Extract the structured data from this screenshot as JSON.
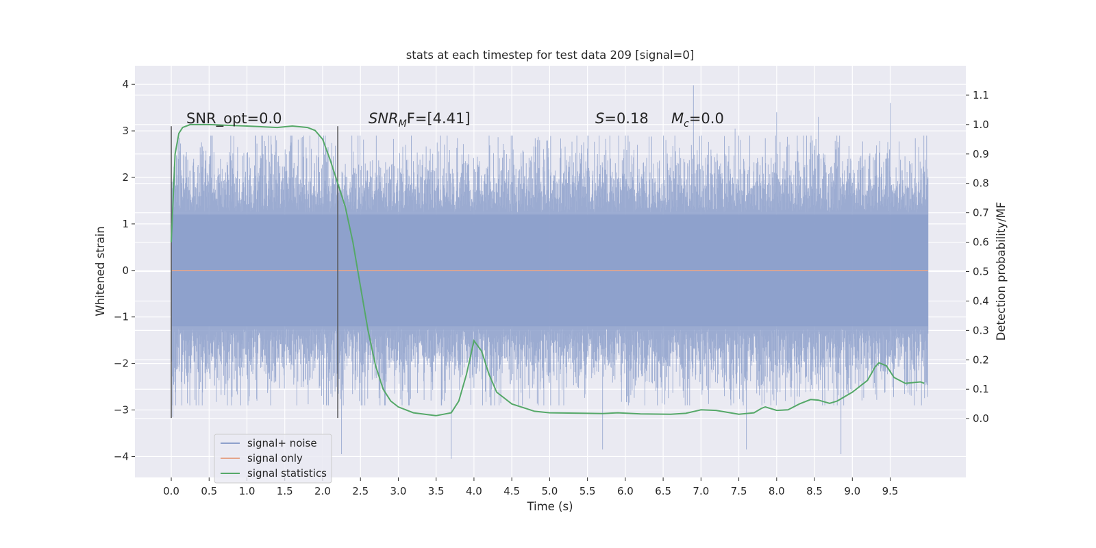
{
  "chart_data": {
    "type": "line",
    "title": "stats at each timestep for test data 209 [signal=0]",
    "xlabel": "Time (s)",
    "ylabel": "Whitened strain",
    "ylabel_right": "Detection probability/MF",
    "xlim": [
      -0.48,
      10.5
    ],
    "ylim": [
      -4.45,
      4.4
    ],
    "ylim_right": [
      -0.2,
      1.2
    ],
    "x_ticks": [
      0.0,
      0.5,
      1.0,
      1.5,
      2.0,
      2.5,
      3.0,
      3.5,
      4.0,
      4.5,
      5.0,
      5.5,
      6.0,
      6.5,
      7.0,
      7.5,
      8.0,
      8.5,
      9.0,
      9.5
    ],
    "x_tick_labels": [
      "0.0",
      "0.5",
      "1.0",
      "1.5",
      "2.0",
      "2.5",
      "3.0",
      "3.5",
      "4.0",
      "4.5",
      "5.0",
      "5.5",
      "6.0",
      "6.5",
      "7.0",
      "7.5",
      "8.0",
      "8.5",
      "9.0",
      "9.5"
    ],
    "y_ticks": [
      -4,
      -3,
      -2,
      -1,
      0,
      1,
      2,
      3,
      4
    ],
    "y_tick_labels": [
      "−4",
      "−3",
      "−2",
      "−1",
      "0",
      "1",
      "2",
      "3",
      "4"
    ],
    "y_right_ticks": [
      0.0,
      0.1,
      0.2,
      0.3,
      0.4,
      0.5,
      0.6,
      0.7,
      0.8,
      0.9,
      1.0,
      1.1
    ],
    "y_right_tick_labels": [
      "0.0",
      "0.1",
      "0.2",
      "0.3",
      "0.4",
      "0.5",
      "0.6",
      "0.7",
      "0.8",
      "0.9",
      "1.0",
      "1.1"
    ],
    "grid": true,
    "legend_position": "lower-left",
    "series": [
      {
        "name": "signal+ noise",
        "axis": "left",
        "color": "#8da0cb",
        "x_range": [
          0.0,
          10.0
        ],
        "typical_range": [
          -2.0,
          2.0
        ],
        "peaks_high": [
          [
            0.05,
            2.3
          ],
          [
            2.2,
            3.05
          ],
          [
            6.9,
            3.98
          ],
          [
            7.45,
            3.05
          ],
          [
            8.0,
            3.4
          ],
          [
            8.55,
            3.3
          ],
          [
            9.5,
            3.6
          ]
        ],
        "peaks_low": [
          [
            0.02,
            -3.15
          ],
          [
            2.25,
            -3.95
          ],
          [
            3.7,
            -4.05
          ],
          [
            5.7,
            -3.85
          ],
          [
            7.6,
            -3.85
          ],
          [
            8.85,
            -3.95
          ]
        ]
      },
      {
        "name": "signal only",
        "axis": "left",
        "color": "#e5a58a",
        "x": [
          0.0,
          10.0
        ],
        "y": [
          0.0,
          0.0
        ]
      },
      {
        "name": "signal statistics",
        "axis": "right",
        "color": "#55a868",
        "x": [
          0.0,
          0.05,
          0.1,
          0.15,
          0.25,
          0.5,
          1.0,
          1.4,
          1.6,
          1.8,
          1.9,
          2.0,
          2.1,
          2.2,
          2.3,
          2.4,
          2.5,
          2.6,
          2.7,
          2.8,
          2.9,
          3.0,
          3.2,
          3.5,
          3.7,
          3.8,
          3.9,
          4.0,
          4.1,
          4.2,
          4.3,
          4.5,
          4.8,
          5.0,
          5.5,
          5.7,
          5.9,
          6.2,
          6.6,
          6.8,
          7.0,
          7.2,
          7.5,
          7.7,
          7.8,
          7.85,
          8.0,
          8.15,
          8.3,
          8.45,
          8.55,
          8.7,
          8.8,
          9.0,
          9.2,
          9.3,
          9.35,
          9.45,
          9.55,
          9.7,
          9.9,
          9.95
        ],
        "y": [
          0.6,
          0.9,
          0.97,
          0.99,
          1.0,
          1.0,
          0.995,
          0.99,
          0.995,
          0.99,
          0.98,
          0.95,
          0.88,
          0.8,
          0.72,
          0.6,
          0.45,
          0.3,
          0.18,
          0.1,
          0.06,
          0.04,
          0.02,
          0.01,
          0.02,
          0.06,
          0.15,
          0.265,
          0.23,
          0.15,
          0.09,
          0.05,
          0.025,
          0.02,
          0.018,
          0.017,
          0.02,
          0.016,
          0.015,
          0.018,
          0.03,
          0.028,
          0.015,
          0.02,
          0.035,
          0.04,
          0.028,
          0.03,
          0.05,
          0.065,
          0.063,
          0.052,
          0.06,
          0.09,
          0.13,
          0.175,
          0.19,
          0.18,
          0.14,
          0.12,
          0.125,
          0.12
        ]
      }
    ],
    "vlines": [
      {
        "x": 0.0,
        "y0": -3.17,
        "y1": 3.1,
        "color": "#555555"
      },
      {
        "x": 2.2,
        "y0": -3.17,
        "y1": 3.1,
        "color": "#555555"
      }
    ],
    "annotations": [
      {
        "text": "SNR_opt=0.0",
        "x": 0.2,
        "y": 3.1
      },
      {
        "text": "F=[4.41]",
        "x": 2.6,
        "y": 3.1
      },
      {
        "text": "=0.18",
        "x": 5.6,
        "y": 3.1
      },
      {
        "text": "=0.0",
        "x": 6.6,
        "y": 3.1
      }
    ]
  }
}
